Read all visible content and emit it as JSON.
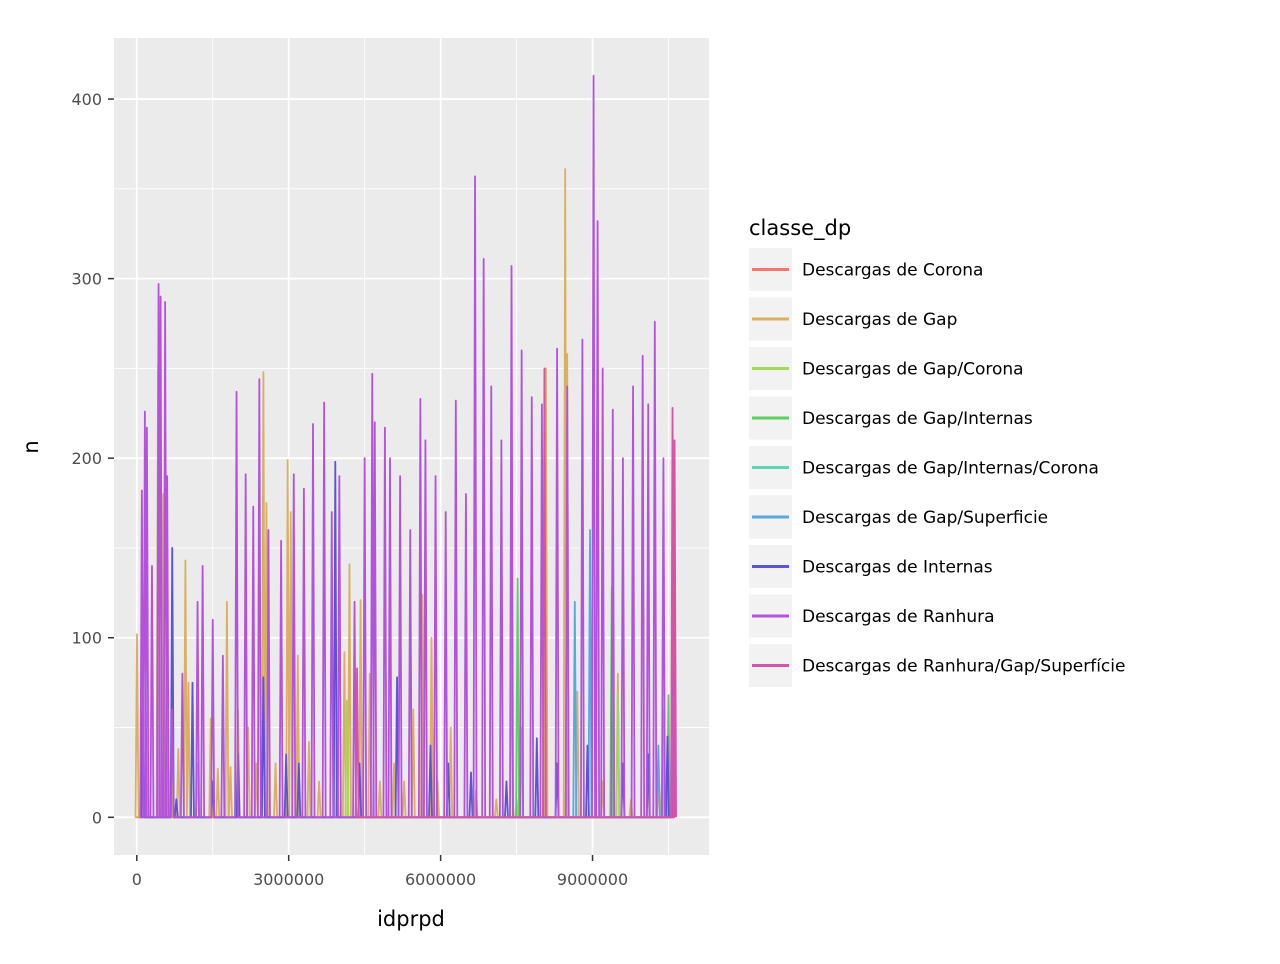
{
  "chart_data": {
    "type": "line",
    "title": "",
    "xlabel": "idprpd",
    "ylabel": "n",
    "xlim": [
      -450000,
      11300000
    ],
    "ylim": [
      -21,
      434
    ],
    "x_ticks": [
      0,
      3000000,
      6000000,
      9000000
    ],
    "x_tick_labels": [
      "0",
      "3000000",
      "6000000",
      "9000000"
    ],
    "y_ticks": [
      0,
      100,
      200,
      300,
      400
    ],
    "y_tick_labels": [
      "0",
      "100",
      "200",
      "300",
      "400"
    ],
    "grid": true,
    "legend": {
      "title": "classe_dp",
      "position": "right"
    },
    "series": [
      {
        "name": "Descargas de Corona",
        "color": "#F8766D",
        "x": [
          0,
          10600000
        ],
        "y": [
          0,
          0
        ]
      },
      {
        "name": "Descargas de Gap",
        "color": "#D39200",
        "color_display": "#D9B062",
        "x": [
          5000,
          110000,
          420000,
          520000,
          680000,
          820000,
          960000,
          1020000,
          1200000,
          1460000,
          1600000,
          1780000,
          1850000,
          2000000,
          2200000,
          2360000,
          2500000,
          2560000,
          2740000,
          2980000,
          3040000,
          3180000,
          3400000,
          3600000,
          3960000,
          4100000,
          4200000,
          4420000,
          4600000,
          4800000,
          5080000,
          5280000,
          5460000,
          5640000,
          5820000,
          5940000,
          6200000,
          6700000,
          7100000,
          7500000,
          8080000,
          8460000,
          8500000,
          8700000,
          9200000,
          9500000,
          9760000,
          10100000,
          10300000,
          10380000,
          10520000
        ],
        "y": [
          102,
          20,
          252,
          180,
          40,
          38,
          143,
          75,
          30,
          55,
          27,
          120,
          28,
          60,
          50,
          30,
          248,
          175,
          30,
          199,
          170,
          90,
          42,
          20,
          25,
          92,
          141,
          121,
          80,
          20,
          30,
          20,
          60,
          124,
          100,
          20,
          50,
          15,
          10,
          10,
          250,
          361,
          258,
          70,
          20,
          80,
          10,
          20,
          22,
          30,
          15
        ]
      },
      {
        "name": "Descargas de Gap/Corona",
        "color": "#93AA00",
        "color_display": "#A3D95A",
        "x": [
          4150000,
          9500000
        ],
        "y": [
          65,
          70
        ]
      },
      {
        "name": "Descargas de Gap/Internas",
        "color": "#00BA38",
        "color_display": "#5DCF60",
        "x": [
          7400000,
          7520000,
          9380000,
          10500000
        ],
        "y": [
          120,
          133,
          128,
          68
        ]
      },
      {
        "name": "Descargas de Gap/Internas/Corona",
        "color": "#00C19F",
        "color_display": "#5CD7B5",
        "x": [
          7600000,
          10400000
        ],
        "y": [
          50,
          60
        ]
      },
      {
        "name": "Descargas de Gap/Superficie",
        "color": "#00B9E3",
        "color_display": "#57A8E0",
        "x": [
          8650000,
          8950000,
          10300000
        ],
        "y": [
          120,
          160,
          40
        ]
      },
      {
        "name": "Descargas de Internas",
        "color": "#619CFF",
        "color_display": "#5A55D6",
        "x": [
          120000,
          700000,
          780000,
          1100000,
          1500000,
          2000000,
          2500000,
          2950000,
          3200000,
          3920000,
          4400000,
          5140000,
          5800000,
          6150000,
          6600000,
          7300000,
          7900000,
          8300000,
          8900000,
          9600000,
          10100000,
          10480000
        ],
        "y": [
          80,
          150,
          10,
          75,
          20,
          35,
          78,
          35,
          30,
          198,
          30,
          78,
          40,
          30,
          25,
          20,
          44,
          30,
          40,
          30,
          35,
          45
        ]
      },
      {
        "name": "Descargas de Ranhura",
        "color": "#DB72FB",
        "color_display": "#B452DE",
        "x": [
          100000,
          160000,
          200000,
          300000,
          430000,
          470000,
          560000,
          600000,
          700000,
          900000,
          1200000,
          1300000,
          1500000,
          1700000,
          1970000,
          2150000,
          2300000,
          2420000,
          2600000,
          2850000,
          3100000,
          3300000,
          3480000,
          3700000,
          3850000,
          4000000,
          4300000,
          4500000,
          4650000,
          4700000,
          4900000,
          5000000,
          5200000,
          5400000,
          5600000,
          5700000,
          5900000,
          6100000,
          6300000,
          6500000,
          6680000,
          6850000,
          7000000,
          7200000,
          7400000,
          7600000,
          7800000,
          8000000,
          8300000,
          8500000,
          8800000,
          9020000,
          9100000,
          9200000,
          9400000,
          9600000,
          9800000,
          9990000,
          10100000,
          10230000,
          10400000,
          10600000
        ],
        "y": [
          182,
          226,
          217,
          140,
          297,
          290,
          287,
          190,
          60,
          80,
          120,
          140,
          110,
          90,
          237,
          191,
          173,
          244,
          160,
          154,
          191,
          183,
          219,
          231,
          170,
          190,
          120,
          200,
          247,
          220,
          217,
          200,
          190,
          160,
          233,
          210,
          190,
          170,
          232,
          180,
          357,
          311,
          240,
          210,
          307,
          260,
          234,
          230,
          261,
          240,
          266,
          413,
          332,
          250,
          227,
          200,
          240,
          257,
          230,
          276,
          200,
          195
        ]
      },
      {
        "name": "Descargas de Ranhura/Gap/Superfície",
        "color": "#FF61C3",
        "color_display": "#D654A8",
        "x": [
          4350000,
          8050000,
          10580000,
          10620000
        ],
        "y": [
          83,
          250,
          228,
          210
        ]
      }
    ]
  }
}
